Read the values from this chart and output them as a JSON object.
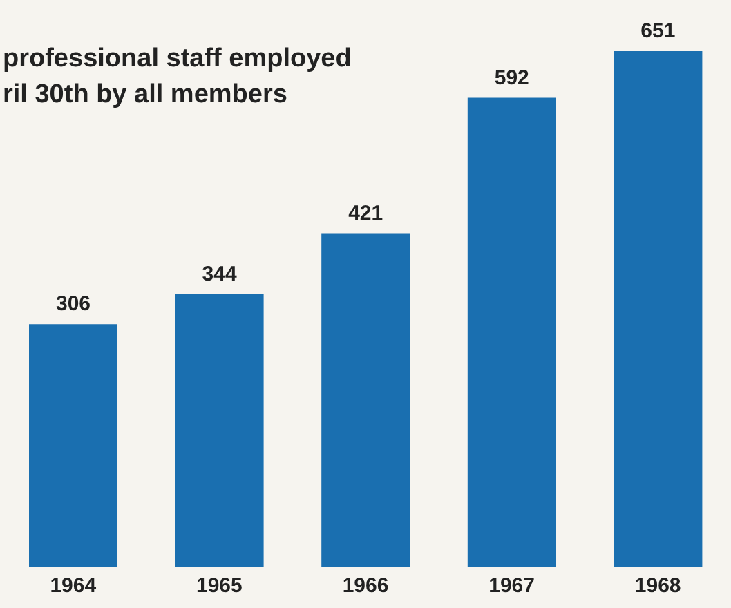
{
  "chart_data": {
    "type": "bar",
    "title": "professional staff employed\nril 30th by all members",
    "categories": [
      "1964",
      "1965",
      "1966",
      "1967",
      "1968"
    ],
    "values": [
      306,
      344,
      421,
      592,
      651
    ],
    "color": "#1a6fb0",
    "data_labels": true
  }
}
